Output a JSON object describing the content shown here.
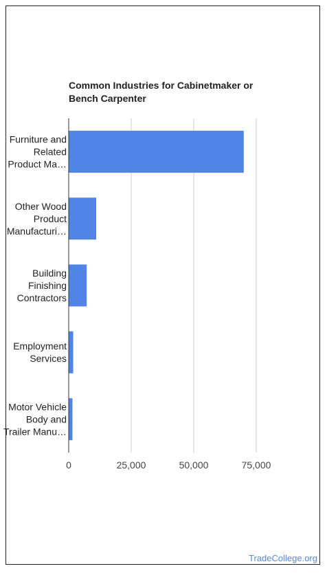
{
  "chart_data": {
    "type": "bar",
    "orientation": "horizontal",
    "title_lines": [
      "Common Industries for Cabinetmaker or",
      "Bench Carpenter"
    ],
    "categories": [
      [
        "Furniture and",
        "Related",
        "Product Ma…"
      ],
      [
        "Other Wood",
        "Product",
        "Manufacturi…"
      ],
      [
        "Building",
        "Finishing",
        "Contractors"
      ],
      [
        "Employment",
        "Services"
      ],
      [
        "Motor Vehicle",
        "Body and",
        "Trailer Manu…"
      ]
    ],
    "values": [
      70000,
      11000,
      7200,
      1800,
      1500
    ],
    "xlim": [
      0,
      75000
    ],
    "x_ticks": [
      0,
      25000,
      50000,
      75000
    ],
    "x_tick_labels": [
      "0",
      "25,000",
      "50,000",
      "75,000"
    ],
    "grid": true,
    "bar_color": "#5284e5"
  },
  "watermark": "TradeCollege.org"
}
